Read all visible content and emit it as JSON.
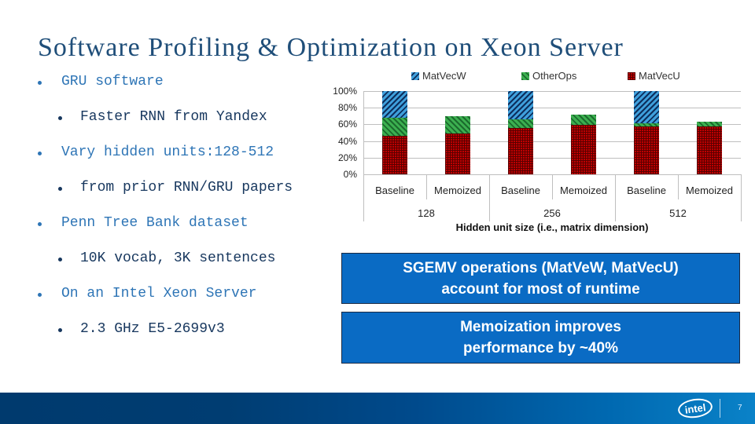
{
  "slide": {
    "title": "Software Profiling & Optimization on Xeon Server",
    "bullets": [
      {
        "level": 1,
        "text": "GRU software"
      },
      {
        "level": 2,
        "text": "Faster RNN from Yandex"
      },
      {
        "level": 1,
        "text": "Vary hidden units:128-512"
      },
      {
        "level": 2,
        "text": "from prior RNN/GRU papers"
      },
      {
        "level": 1,
        "text": "Penn Tree Bank dataset"
      },
      {
        "level": 2,
        "text": "10K vocab,  3K sentences"
      },
      {
        "level": 1,
        "text": "On an Intel Xeon Server"
      },
      {
        "level": 2,
        "text": "2.3 GHz E5-2699v3"
      }
    ],
    "callouts": [
      {
        "line1": "SGEMV operations (MatVeW, MatVecU)",
        "line2": "account for most of runtime"
      },
      {
        "line1": "Memoization improves",
        "line2": "performance by ~40%"
      }
    ],
    "footer": {
      "logo": "intel",
      "page_number": "7"
    }
  },
  "colors": {
    "title": "#1f4e79",
    "bullet_level1": "#2e75b6",
    "bullet_level2": "#17375e",
    "callout_bg": "#0a6bc4",
    "footer_start": "#003a6e",
    "footer_end": "#0a82c8",
    "MatVecW": "#3fa0dc",
    "OtherOps": "#3cb050",
    "MatVecU": "#c00000"
  },
  "chart_data": {
    "type": "bar",
    "stacked": true,
    "title": "",
    "xlabel": "Hidden unit size (i.e., matrix dimension)",
    "ylabel": "",
    "ylim": [
      0,
      100
    ],
    "yticks": [
      "0%",
      "20%",
      "40%",
      "60%",
      "80%",
      "100%"
    ],
    "grid": true,
    "legend_position": "top",
    "groups": [
      "128",
      "256",
      "512"
    ],
    "categories": [
      "Baseline",
      "Memoized",
      "Baseline",
      "Memoized",
      "Baseline",
      "Memoized"
    ],
    "series": [
      {
        "name": "MatVecU",
        "values": [
          46,
          49,
          56,
          59,
          58,
          58
        ]
      },
      {
        "name": "OtherOps",
        "values": [
          22,
          21,
          10,
          13,
          3,
          5
        ]
      },
      {
        "name": "MatVecW",
        "values": [
          32,
          0,
          34,
          0,
          39,
          0
        ]
      }
    ],
    "legend": [
      "MatVecW",
      "OtherOps",
      "MatVecU"
    ]
  }
}
